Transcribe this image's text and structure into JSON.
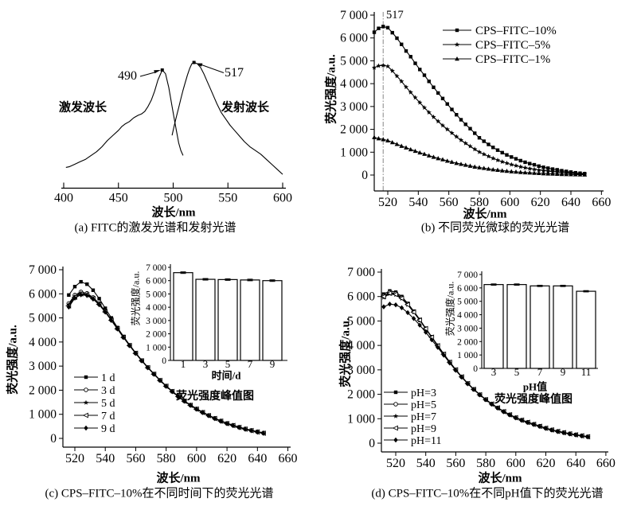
{
  "figure_title": "FITC fluorescence spectra figure",
  "panels": {
    "a": {
      "caption": "(a) FITC的激发光谱和发射光谱",
      "xlabel": "波长/nm",
      "excitation_label": "激发波长",
      "emission_label": "发射波长",
      "peak_excitation_label": "490",
      "peak_emission_label": "517"
    },
    "b": {
      "caption": "(b) 不同荧光微球的荧光光谱",
      "xlabel": "波长/nm",
      "ylabel": "荧光强度/a.u.",
      "vline_label": "517"
    },
    "c": {
      "caption": "(c) CPS–FITC–10%在不同时间下的荧光光谱",
      "xlabel": "波长/nm",
      "ylabel": "荧光强度/a.u.",
      "inset": {
        "title": "荧光强度峰值图",
        "xlabel": "时间/d",
        "ylabel": "荧光强度/a.u."
      }
    },
    "d": {
      "caption": "(d) CPS–FITC–10%在不同pH值下的荧光光谱",
      "xlabel": "波长/nm",
      "ylabel": "荧光强度/a.u.",
      "inset": {
        "title": "荧光强度峰值图",
        "xlabel": "pH值",
        "ylabel": "荧光强度/a.u."
      }
    }
  },
  "colors": {
    "line": "#000000",
    "vline": "#9a9a9a",
    "background": "#ffffff"
  },
  "chart_data": {
    "a": {
      "type": "line",
      "title": "(a) FITC的激发光谱和发射光谱",
      "xlabel": "波长/nm",
      "xlim": [
        400,
        600
      ],
      "xticks": [
        400,
        450,
        500,
        550,
        600
      ],
      "ylabel": "",
      "note": "y axis not drawn; intensities relative (emission peak = 1.0)",
      "series": [
        {
          "name": "激发波长",
          "x": [
            402,
            405,
            410,
            415,
            420,
            425,
            430,
            435,
            440,
            445,
            450,
            453,
            456,
            460,
            464,
            468,
            471,
            474,
            477,
            480,
            483,
            486,
            490,
            493,
            496,
            499,
            502,
            505,
            507,
            509
          ],
          "y": [
            0.165,
            0.17,
            0.19,
            0.21,
            0.23,
            0.26,
            0.29,
            0.33,
            0.38,
            0.42,
            0.46,
            0.49,
            0.51,
            0.53,
            0.56,
            0.58,
            0.59,
            0.61,
            0.65,
            0.7,
            0.77,
            0.86,
            0.94,
            0.91,
            0.8,
            0.65,
            0.5,
            0.36,
            0.3,
            0.26
          ]
        },
        {
          "name": "发射波长",
          "x": [
            499,
            501,
            503,
            505,
            507,
            509,
            511,
            513,
            515,
            517,
            519,
            522,
            525,
            528,
            531,
            534,
            537,
            540,
            544,
            548,
            552,
            556,
            560,
            565,
            570,
            575,
            580,
            585,
            590,
            595,
            600
          ],
          "y": [
            0.42,
            0.5,
            0.57,
            0.64,
            0.71,
            0.78,
            0.84,
            0.9,
            0.95,
            0.99,
            1.0,
            0.99,
            0.96,
            0.91,
            0.85,
            0.79,
            0.73,
            0.67,
            0.6,
            0.55,
            0.5,
            0.46,
            0.42,
            0.37,
            0.33,
            0.3,
            0.27,
            0.23,
            0.19,
            0.15,
            0.11
          ]
        }
      ],
      "annotations": [
        {
          "text": "490",
          "at_x": 490,
          "at_y": 0.94
        },
        {
          "text": "517",
          "at_x": 519,
          "at_y": 1.0
        }
      ]
    },
    "b": {
      "type": "line",
      "title": "(b) 不同荧光微球的荧光光谱",
      "xlabel": "波长/nm",
      "ylabel": "荧光强度/a.u.",
      "xlim": [
        510,
        661
      ],
      "ylim": [
        0,
        7000
      ],
      "xticks": [
        520,
        540,
        560,
        580,
        600,
        620,
        640,
        660
      ],
      "yticks": [
        0,
        1000,
        2000,
        3000,
        4000,
        5000,
        6000,
        7000
      ],
      "vline": {
        "x": 517,
        "label": "517"
      },
      "legend_position": "upper right",
      "x": [
        511,
        514,
        517,
        520,
        523,
        526,
        529,
        532,
        535,
        538,
        541,
        544,
        547,
        550,
        553,
        556,
        559,
        562,
        565,
        568,
        571,
        574,
        577,
        580,
        583,
        586,
        589,
        592,
        595,
        598,
        601,
        604,
        607,
        610,
        613,
        616,
        619,
        622,
        625,
        628,
        631,
        634,
        637,
        640,
        643,
        646,
        649
      ],
      "series": [
        {
          "name": "CPS–FITC–10%",
          "marker": "square",
          "y": [
            6250,
            6420,
            6500,
            6450,
            6230,
            5990,
            5720,
            5430,
            5180,
            4890,
            4620,
            4370,
            4100,
            3840,
            3590,
            3350,
            3110,
            2870,
            2640,
            2420,
            2220,
            2030,
            1830,
            1630,
            1480,
            1340,
            1210,
            1090,
            980,
            880,
            790,
            710,
            630,
            560,
            500,
            450,
            390,
            340,
            300,
            260,
            230,
            190,
            160,
            130,
            100,
            80,
            60
          ]
        },
        {
          "name": "CPS–FITC–5%",
          "marker": "star",
          "y": [
            4700,
            4780,
            4800,
            4760,
            4560,
            4330,
            4100,
            3850,
            3620,
            3390,
            3170,
            2950,
            2740,
            2540,
            2350,
            2170,
            2000,
            1840,
            1680,
            1530,
            1390,
            1260,
            1130,
            1010,
            910,
            820,
            730,
            650,
            580,
            520,
            460,
            410,
            360,
            320,
            280,
            250,
            220,
            195,
            170,
            150,
            130,
            110,
            95,
            80,
            65,
            55,
            45
          ]
        },
        {
          "name": "CPS–FITC–1%",
          "marker": "triangle",
          "y": [
            1650,
            1600,
            1560,
            1510,
            1430,
            1350,
            1270,
            1200,
            1120,
            1050,
            980,
            920,
            850,
            790,
            730,
            680,
            620,
            570,
            520,
            480,
            440,
            400,
            360,
            330,
            300,
            270,
            240,
            220,
            195,
            175,
            155,
            140,
            125,
            110,
            100,
            88,
            78,
            68,
            60,
            52,
            45,
            38,
            32,
            27,
            22,
            18,
            15
          ]
        }
      ]
    },
    "c": {
      "type": "line",
      "title": "(c) CPS–FITC–10%在不同时间下的荧光光谱",
      "xlabel": "波长/nm",
      "ylabel": "荧光强度/a.u.",
      "xlim": [
        512,
        662
      ],
      "ylim": [
        0,
        7000
      ],
      "xticks": [
        520,
        540,
        560,
        580,
        600,
        620,
        640,
        660
      ],
      "yticks": [
        0,
        1000,
        2000,
        3000,
        4000,
        5000,
        6000,
        7000
      ],
      "legend_position": "lower left",
      "x": [
        516,
        520,
        524,
        528,
        532,
        536,
        540,
        544,
        548,
        552,
        556,
        560,
        564,
        568,
        572,
        576,
        580,
        584,
        588,
        592,
        596,
        600,
        604,
        608,
        612,
        616,
        620,
        624,
        628,
        632,
        636,
        640,
        644
      ],
      "series": [
        {
          "name": "1 d",
          "marker": "square",
          "y": [
            5950,
            6300,
            6500,
            6400,
            6150,
            5800,
            5400,
            5000,
            4600,
            4230,
            3880,
            3550,
            3240,
            2950,
            2680,
            2420,
            2180,
            1960,
            1750,
            1560,
            1390,
            1230,
            1090,
            960,
            840,
            730,
            630,
            550,
            470,
            400,
            340,
            280,
            230
          ]
        },
        {
          "name": "3 d",
          "marker": "circle-open",
          "y": [
            5600,
            5950,
            6080,
            6020,
            5850,
            5600,
            5280,
            4920,
            4560,
            4200,
            3860,
            3540,
            3230,
            2945,
            2675,
            2415,
            2175,
            1955,
            1745,
            1555,
            1385,
            1225,
            1085,
            955,
            835,
            725,
            625,
            545,
            465,
            395,
            335,
            275,
            225
          ]
        },
        {
          "name": "5 d",
          "marker": "star",
          "y": [
            5550,
            5900,
            6030,
            5980,
            5820,
            5580,
            5260,
            4910,
            4550,
            4195,
            3855,
            3535,
            3225,
            2940,
            2670,
            2410,
            2170,
            1950,
            1740,
            1550,
            1380,
            1220,
            1080,
            950,
            830,
            720,
            620,
            540,
            460,
            390,
            330,
            270,
            220
          ]
        },
        {
          "name": "7 d",
          "marker": "triangle-left-open",
          "y": [
            5500,
            5860,
            6000,
            5960,
            5800,
            5560,
            5250,
            4900,
            4545,
            4190,
            3850,
            3530,
            3220,
            2935,
            2665,
            2405,
            2165,
            1945,
            1735,
            1545,
            1375,
            1215,
            1075,
            945,
            825,
            715,
            615,
            535,
            455,
            385,
            325,
            265,
            215
          ]
        },
        {
          "name": "9 d",
          "marker": "diamond",
          "y": [
            5450,
            5820,
            5960,
            5930,
            5780,
            5545,
            5240,
            4895,
            4540,
            4185,
            3845,
            3525,
            3215,
            2930,
            2660,
            2400,
            2160,
            1940,
            1730,
            1540,
            1370,
            1210,
            1070,
            940,
            820,
            710,
            610,
            530,
            450,
            380,
            320,
            260,
            210
          ]
        }
      ],
      "inset": {
        "type": "bar",
        "title": "荧光强度峰值图",
        "xlabel": "时间/d",
        "ylabel": "荧光强度/a.u.",
        "categories": [
          "1",
          "3",
          "5",
          "7",
          "9"
        ],
        "values": [
          6600,
          6100,
          6080,
          6050,
          6000
        ],
        "errors": [
          60,
          60,
          60,
          60,
          60
        ],
        "ylim": [
          0,
          7000
        ],
        "yticks": [
          0,
          1000,
          2000,
          3000,
          4000,
          5000,
          6000,
          7000
        ]
      }
    },
    "d": {
      "type": "line",
      "title": "(d) CPS–FITC–10%在不同pH值下的荧光光谱",
      "xlabel": "波长/nm",
      "ylabel": "荧光强度/a.u.",
      "xlim": [
        510,
        662
      ],
      "ylim": [
        0,
        7000
      ],
      "xticks": [
        520,
        540,
        560,
        580,
        600,
        620,
        640,
        660
      ],
      "yticks": [
        0,
        1000,
        2000,
        3000,
        4000,
        5000,
        6000,
        7000
      ],
      "legend_position": "lower left",
      "x": [
        512,
        516,
        520,
        524,
        528,
        532,
        536,
        540,
        544,
        548,
        552,
        556,
        560,
        564,
        568,
        572,
        576,
        580,
        584,
        588,
        592,
        596,
        600,
        604,
        608,
        612,
        616,
        620,
        624,
        628,
        632,
        636,
        640,
        644,
        648
      ],
      "series": [
        {
          "name": "pH=3",
          "marker": "square",
          "y": [
            6100,
            6230,
            6180,
            6000,
            5720,
            5400,
            5060,
            4700,
            4350,
            4000,
            3650,
            3320,
            3010,
            2720,
            2450,
            2210,
            1990,
            1790,
            1610,
            1450,
            1300,
            1170,
            1050,
            950,
            860,
            780,
            700,
            620,
            550,
            490,
            440,
            390,
            350,
            310,
            270
          ]
        },
        {
          "name": "pH=5",
          "marker": "circle-open",
          "y": [
            6020,
            6170,
            6120,
            5950,
            5690,
            5380,
            5040,
            4690,
            4340,
            3990,
            3645,
            3315,
            3005,
            2715,
            2445,
            2205,
            1985,
            1785,
            1605,
            1445,
            1295,
            1165,
            1045,
            945,
            855,
            775,
            695,
            615,
            545,
            485,
            435,
            385,
            345,
            305,
            265
          ]
        },
        {
          "name": "pH=7",
          "marker": "star",
          "y": [
            5960,
            6110,
            6070,
            5910,
            5660,
            5360,
            5030,
            4680,
            4330,
            3985,
            3640,
            3310,
            3000,
            2710,
            2440,
            2200,
            1980,
            1780,
            1600,
            1440,
            1290,
            1160,
            1040,
            940,
            850,
            770,
            690,
            610,
            540,
            480,
            430,
            380,
            340,
            300,
            260
          ]
        },
        {
          "name": "pH=9",
          "marker": "triangle-left-open",
          "y": [
            6000,
            6140,
            6090,
            5930,
            5670,
            5365,
            5035,
            4685,
            4335,
            3985,
            3642,
            3312,
            3002,
            2712,
            2442,
            2202,
            1982,
            1782,
            1602,
            1442,
            1292,
            1162,
            1042,
            942,
            852,
            772,
            692,
            612,
            542,
            482,
            432,
            382,
            342,
            302,
            262
          ]
        },
        {
          "name": "pH=11",
          "marker": "diamond",
          "y": [
            5580,
            5690,
            5660,
            5540,
            5340,
            5100,
            4830,
            4540,
            4230,
            3920,
            3600,
            3280,
            2980,
            2700,
            2430,
            2195,
            1975,
            1775,
            1595,
            1435,
            1285,
            1155,
            1035,
            935,
            845,
            765,
            685,
            605,
            535,
            475,
            425,
            375,
            335,
            295,
            255
          ]
        }
      ],
      "inset": {
        "type": "bar",
        "title": "荧光强度峰值图",
        "xlabel": "pH值",
        "ylabel": "荧光强度/a.u.",
        "categories": [
          "3",
          "5",
          "7",
          "9",
          "11"
        ],
        "values": [
          6250,
          6250,
          6150,
          6150,
          5750
        ],
        "errors": [
          50,
          50,
          50,
          50,
          50
        ],
        "ylim": [
          0,
          7000
        ],
        "yticks": [
          0,
          1000,
          2000,
          3000,
          4000,
          5000,
          6000,
          7000
        ]
      }
    }
  }
}
